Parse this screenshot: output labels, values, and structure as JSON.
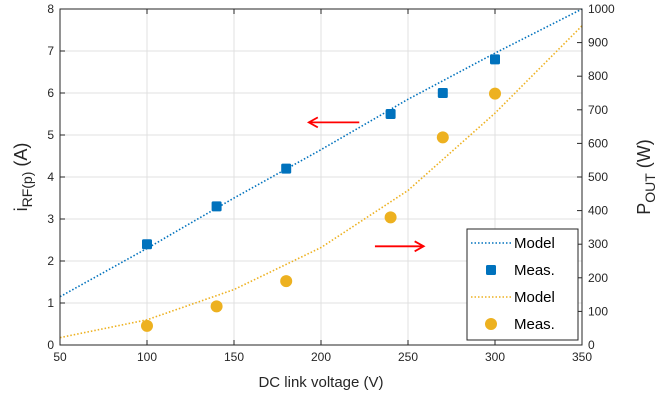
{
  "chart_data": {
    "type": "scatter",
    "xlabel": "DC link voltage (V)",
    "ylabel_left": {
      "main": "i",
      "sub": "RF(p)",
      "unit": " (A)"
    },
    "ylabel_right": {
      "main": "P",
      "sub": "OUT",
      "unit": " (W)"
    },
    "xlim": [
      50,
      350
    ],
    "ylim_left": [
      0,
      8
    ],
    "ylim_right": [
      0,
      1000
    ],
    "x_ticks": [
      "50",
      "100",
      "150",
      "200",
      "250",
      "300",
      "350"
    ],
    "y_left_ticks": [
      "0",
      "1",
      "2",
      "3",
      "4",
      "5",
      "6",
      "7",
      "8"
    ],
    "y_right_ticks": [
      "0",
      "100",
      "200",
      "300",
      "400",
      "500",
      "600",
      "700",
      "800",
      "900",
      "1000"
    ],
    "grid": true,
    "legend_position": "bottom-right",
    "series": [
      {
        "name": "Model",
        "axis": "left",
        "kind": "line",
        "style": "dotted",
        "color": "#0072BD",
        "x": [
          50,
          100,
          150,
          200,
          250,
          300,
          350
        ],
        "y": [
          1.15,
          2.3,
          3.5,
          4.65,
          5.85,
          6.95,
          8.0
        ]
      },
      {
        "name": "Meas.",
        "axis": "left",
        "kind": "marker",
        "marker": "square",
        "color": "#0072BD",
        "x": [
          100,
          140,
          180,
          240,
          270,
          300
        ],
        "y": [
          2.4,
          3.3,
          4.2,
          5.5,
          6.0,
          6.8
        ]
      },
      {
        "name": "Model",
        "axis": "right",
        "kind": "line",
        "style": "dotted",
        "color": "#EDB120",
        "x": [
          50,
          100,
          150,
          200,
          250,
          300,
          350
        ],
        "y": [
          22,
          75,
          165,
          290,
          460,
          690,
          950
        ]
      },
      {
        "name": "Meas.",
        "axis": "right",
        "kind": "marker",
        "marker": "circle",
        "color": "#EDB120",
        "x": [
          100,
          140,
          180,
          240,
          270,
          300
        ],
        "y": [
          57,
          115,
          190,
          380,
          618,
          748
        ]
      }
    ],
    "annotations": [
      {
        "type": "arrow",
        "direction": "left",
        "color": "#FF0000",
        "x_from": 222,
        "x_to": 193,
        "y_left": 5.3
      },
      {
        "type": "arrow",
        "direction": "right",
        "color": "#FF0000",
        "x_from": 231,
        "x_to": 259,
        "y_left": 2.35
      }
    ]
  }
}
